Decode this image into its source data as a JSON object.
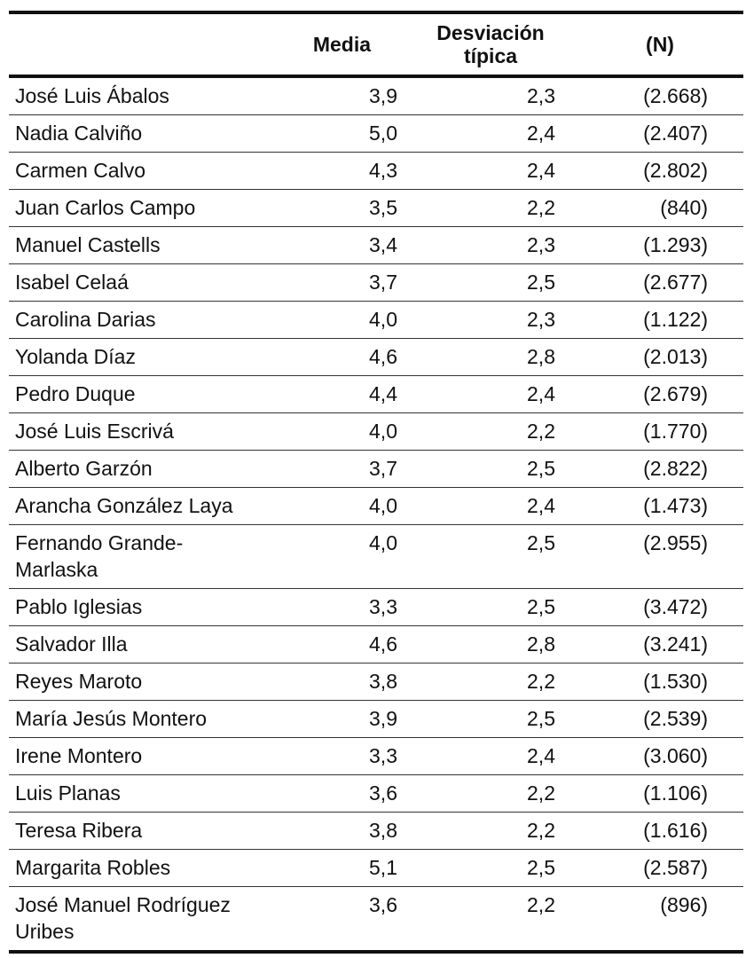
{
  "table": {
    "headers": {
      "name": "",
      "mean": "Media",
      "sd": "Desviación típica",
      "n": "(N)"
    },
    "rows": [
      {
        "name": "José Luis Ábalos",
        "mean": "3,9",
        "sd": "2,3",
        "n": "(2.668)"
      },
      {
        "name": "Nadia Calviño",
        "mean": "5,0",
        "sd": "2,4",
        "n": "(2.407)"
      },
      {
        "name": "Carmen Calvo",
        "mean": "4,3",
        "sd": "2,4",
        "n": "(2.802)"
      },
      {
        "name": "Juan Carlos Campo",
        "mean": "3,5",
        "sd": "2,2",
        "n": "(840)"
      },
      {
        "name": "Manuel Castells",
        "mean": "3,4",
        "sd": "2,3",
        "n": "(1.293)"
      },
      {
        "name": "Isabel Celaá",
        "mean": "3,7",
        "sd": "2,5",
        "n": "(2.677)"
      },
      {
        "name": "Carolina Darias",
        "mean": "4,0",
        "sd": "2,3",
        "n": "(1.122)"
      },
      {
        "name": "Yolanda Díaz",
        "mean": "4,6",
        "sd": "2,8",
        "n": "(2.013)"
      },
      {
        "name": "Pedro Duque",
        "mean": "4,4",
        "sd": "2,4",
        "n": "(2.679)"
      },
      {
        "name": "José Luis Escrivá",
        "mean": "4,0",
        "sd": "2,2",
        "n": "(1.770)"
      },
      {
        "name": "Alberto Garzón",
        "mean": "3,7",
        "sd": "2,5",
        "n": "(2.822)"
      },
      {
        "name": "Arancha González Laya",
        "mean": "4,0",
        "sd": "2,4",
        "n": "(1.473)"
      },
      {
        "name": "Fernando Grande-Marlaska",
        "mean": "4,0",
        "sd": "2,5",
        "n": "(2.955)"
      },
      {
        "name": "Pablo Iglesias",
        "mean": "3,3",
        "sd": "2,5",
        "n": "(3.472)"
      },
      {
        "name": "Salvador Illa",
        "mean": "4,6",
        "sd": "2,8",
        "n": "(3.241)"
      },
      {
        "name": "Reyes Maroto",
        "mean": "3,8",
        "sd": "2,2",
        "n": "(1.530)"
      },
      {
        "name": "María Jesús Montero",
        "mean": "3,9",
        "sd": "2,5",
        "n": "(2.539)"
      },
      {
        "name": "Irene Montero",
        "mean": "3,3",
        "sd": "2,4",
        "n": "(3.060)"
      },
      {
        "name": "Luis Planas",
        "mean": "3,6",
        "sd": "2,2",
        "n": "(1.106)"
      },
      {
        "name": "Teresa Ribera",
        "mean": "3,8",
        "sd": "2,2",
        "n": "(1.616)"
      },
      {
        "name": "Margarita Robles",
        "mean": "5,1",
        "sd": "2,5",
        "n": "(2.587)"
      },
      {
        "name": "José Manuel Rodríguez Uribes",
        "mean": "3,6",
        "sd": "2,2",
        "n": "(896)"
      }
    ]
  }
}
